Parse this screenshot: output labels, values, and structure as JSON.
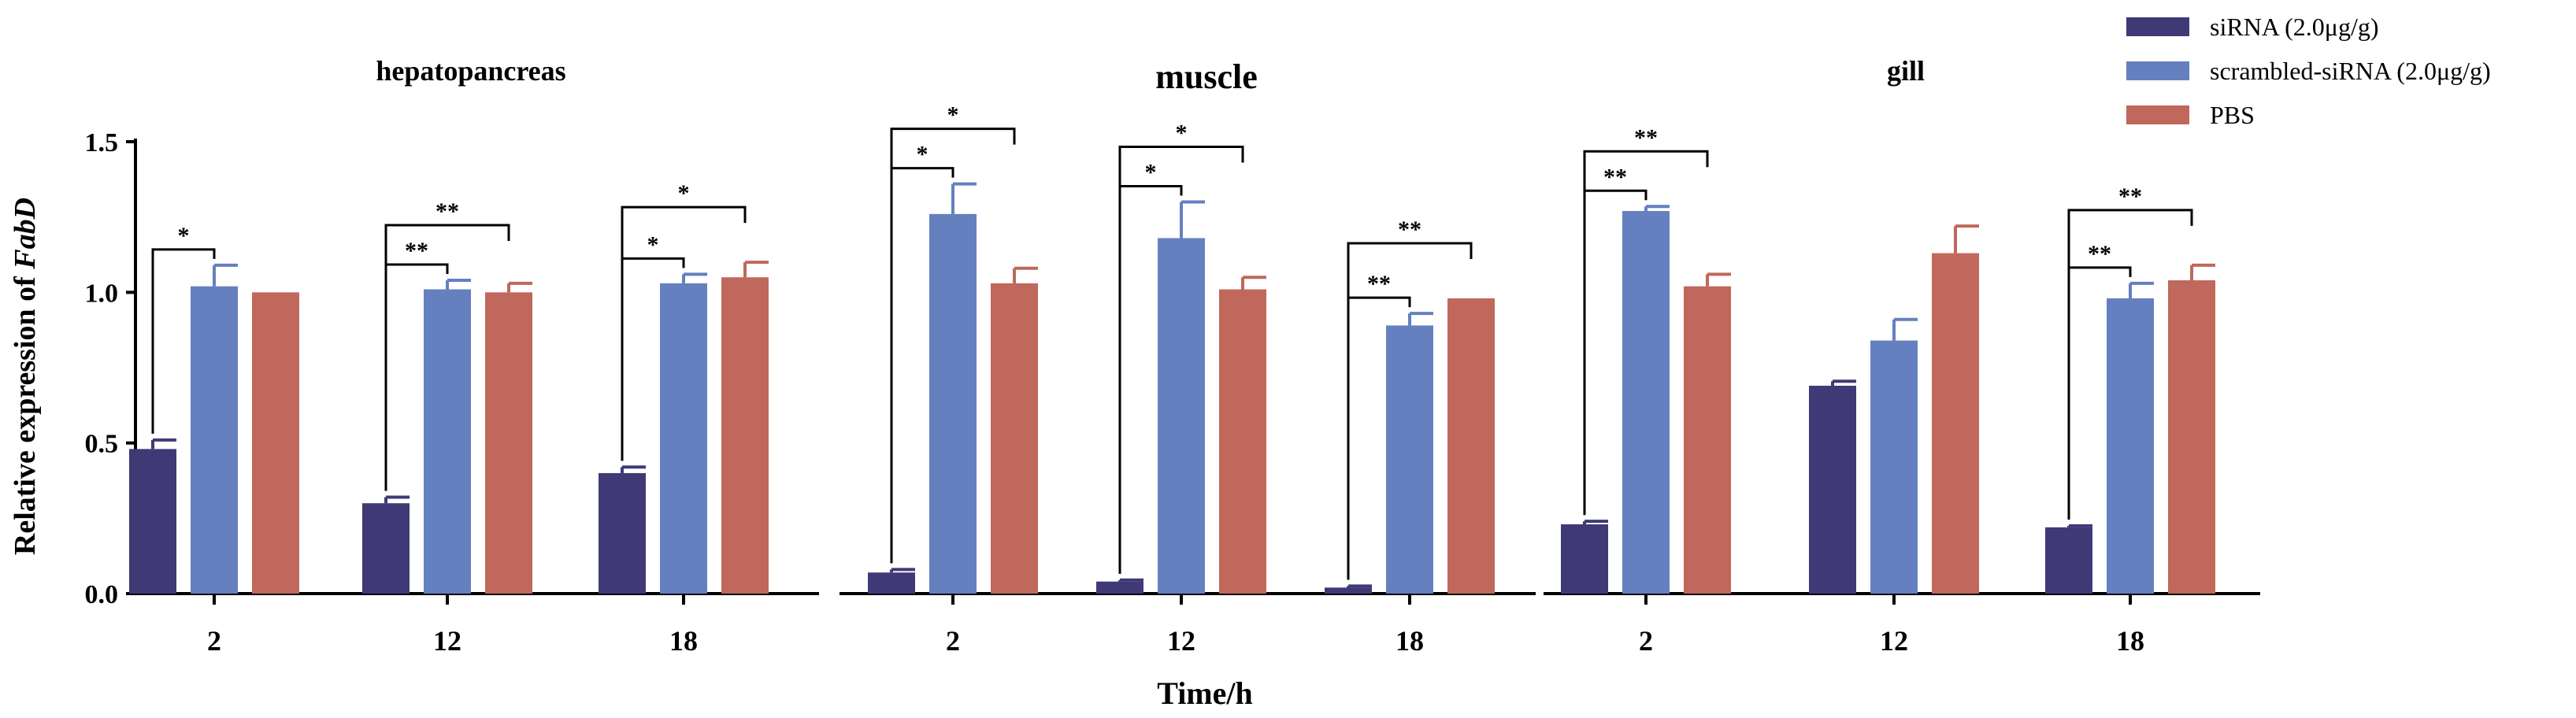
{
  "chart_data": {
    "type": "bar",
    "ylabel_prefix": "Relative expression of ",
    "ylabel_gene": "FabD",
    "xlabel": "Time/h",
    "ylim": [
      0,
      1.5
    ],
    "yticks": [
      "0.0",
      "0.5",
      "1.0",
      "1.5"
    ],
    "categories": [
      "2",
      "12",
      "18"
    ],
    "legend_position": "top-right",
    "series_meta": [
      {
        "name": "siRNA (2.0μg/g)",
        "color": "#3f3a75"
      },
      {
        "name": "scrambled-siRNA (2.0μg/g)",
        "color": "#6480bf"
      },
      {
        "name": "PBS",
        "color": "#c0685c"
      }
    ],
    "panels": [
      {
        "title": "hepatopancreas",
        "series": [
          {
            "name": "siRNA (2.0μg/g)",
            "values": [
              0.48,
              0.3,
              0.4
            ],
            "errors": [
              0.03,
              0.02,
              0.02
            ]
          },
          {
            "name": "scrambled-siRNA (2.0μg/g)",
            "values": [
              1.02,
              1.01,
              1.03
            ],
            "errors": [
              0.07,
              0.03,
              0.03
            ]
          },
          {
            "name": "PBS",
            "values": [
              1.0,
              1.0,
              1.05
            ],
            "errors": [
              0.0,
              0.03,
              0.05
            ]
          }
        ],
        "significance": [
          {
            "category": 0,
            "from": 0,
            "to": 1,
            "label": "*"
          },
          {
            "category": 1,
            "from": 0,
            "to": 1,
            "label": "**"
          },
          {
            "category": 1,
            "from": 0,
            "to": 2,
            "label": "**"
          },
          {
            "category": 2,
            "from": 0,
            "to": 1,
            "label": "*"
          },
          {
            "category": 2,
            "from": 0,
            "to": 2,
            "label": "*"
          }
        ]
      },
      {
        "title": "muscle",
        "series": [
          {
            "name": "siRNA (2.0μg/g)",
            "values": [
              0.07,
              0.04,
              0.02
            ],
            "errors": [
              0.01,
              0.005,
              0.005
            ]
          },
          {
            "name": "scrambled-siRNA (2.0μg/g)",
            "values": [
              1.26,
              1.18,
              0.89
            ],
            "errors": [
              0.1,
              0.12,
              0.04
            ]
          },
          {
            "name": "PBS",
            "values": [
              1.03,
              1.01,
              0.98
            ],
            "errors": [
              0.05,
              0.04,
              0.0
            ]
          }
        ],
        "significance": [
          {
            "category": 0,
            "from": 0,
            "to": 1,
            "label": "*"
          },
          {
            "category": 0,
            "from": 0,
            "to": 2,
            "label": "*"
          },
          {
            "category": 1,
            "from": 0,
            "to": 1,
            "label": "*"
          },
          {
            "category": 1,
            "from": 0,
            "to": 2,
            "label": "*"
          },
          {
            "category": 2,
            "from": 0,
            "to": 1,
            "label": "**"
          },
          {
            "category": 2,
            "from": 0,
            "to": 2,
            "label": "**"
          }
        ]
      },
      {
        "title": "gill",
        "series": [
          {
            "name": "siRNA (2.0μg/g)",
            "values": [
              0.23,
              0.69,
              0.22
            ],
            "errors": [
              0.01,
              0.015,
              0.005
            ]
          },
          {
            "name": "scrambled-siRNA (2.0μg/g)",
            "values": [
              1.27,
              0.84,
              0.98
            ],
            "errors": [
              0.015,
              0.07,
              0.05
            ]
          },
          {
            "name": "PBS",
            "values": [
              1.02,
              1.13,
              1.04
            ],
            "errors": [
              0.04,
              0.09,
              0.05
            ]
          }
        ],
        "significance": [
          {
            "category": 0,
            "from": 0,
            "to": 1,
            "label": "**"
          },
          {
            "category": 0,
            "from": 0,
            "to": 2,
            "label": "**"
          },
          {
            "category": 2,
            "from": 0,
            "to": 1,
            "label": "**"
          },
          {
            "category": 2,
            "from": 0,
            "to": 2,
            "label": "**"
          }
        ]
      }
    ]
  }
}
